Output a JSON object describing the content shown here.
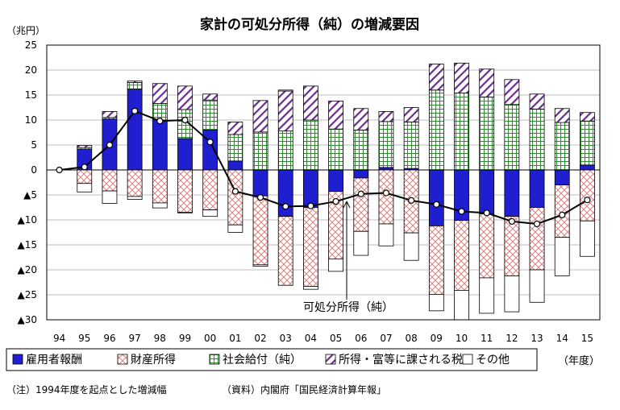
{
  "chart_data": {
    "type": "bar",
    "title": "家計の可処分所得（純）の増減要因",
    "y_unit": "（兆円）",
    "x_unit": "（年度）",
    "ylim": [
      -30,
      25
    ],
    "y_ticks": [
      {
        "value": 25,
        "label": "25"
      },
      {
        "value": 20,
        "label": "20"
      },
      {
        "value": 15,
        "label": "15"
      },
      {
        "value": 10,
        "label": "10"
      },
      {
        "value": 5,
        "label": "5"
      },
      {
        "value": 0,
        "label": "0"
      },
      {
        "value": -5,
        "label": "▲5"
      },
      {
        "value": -10,
        "label": "▲10"
      },
      {
        "value": -15,
        "label": "▲15"
      },
      {
        "value": -20,
        "label": "▲20"
      },
      {
        "value": -25,
        "label": "▲25"
      },
      {
        "value": -30,
        "label": "▲30"
      }
    ],
    "categories": [
      "94",
      "95",
      "96",
      "97",
      "98",
      "99",
      "00",
      "01",
      "02",
      "03",
      "04",
      "05",
      "06",
      "07",
      "08",
      "09",
      "10",
      "11",
      "12",
      "13",
      "14",
      "15"
    ],
    "stacked": true,
    "series": [
      {
        "name": "雇用者報酬",
        "pattern": "solid",
        "color": "#1f1fd0",
        "values": [
          0,
          4.2,
          10.2,
          16.2,
          10.0,
          6.3,
          8.0,
          1.8,
          -5.2,
          -9.3,
          -7.5,
          -4.3,
          -1.6,
          0.5,
          0.3,
          -11.2,
          -10.1,
          -8.8,
          -9.3,
          -7.5,
          -3.0,
          1.0
        ]
      },
      {
        "name": "財産所得",
        "pattern": "crosshatch",
        "color": "#e8a0a0",
        "values": [
          0,
          -2.7,
          -4.2,
          -5.3,
          -6.6,
          -8.5,
          -8.0,
          -11.0,
          -13.8,
          -13.8,
          -15.8,
          -13.5,
          -10.7,
          -10.8,
          -12.6,
          -13.7,
          -14.0,
          -12.8,
          -11.9,
          -12.5,
          -10.5,
          -10.2
        ]
      },
      {
        "name": "社会給付（純）",
        "pattern": "grid",
        "color": "#3a9a3a",
        "values": [
          0,
          0.3,
          0.3,
          1.3,
          3.3,
          5.8,
          6.0,
          5.3,
          7.6,
          7.8,
          10.0,
          8.2,
          8.0,
          9.2,
          9.3,
          16.0,
          15.4,
          14.6,
          13.1,
          12.2,
          9.5,
          8.8
        ]
      },
      {
        "name": "所得・富等に課される税",
        "pattern": "diagonal",
        "color": "#6a2d8e",
        "values": [
          0,
          0.4,
          1.2,
          0.3,
          4.0,
          4.7,
          1.2,
          2.5,
          6.3,
          8.0,
          6.8,
          5.6,
          4.3,
          2.0,
          2.9,
          5.2,
          6.0,
          5.6,
          5.0,
          3.0,
          2.8,
          1.7
        ]
      },
      {
        "name": "その他",
        "pattern": "none",
        "color": "#ffffff",
        "values": [
          0,
          -1.7,
          -2.5,
          -0.6,
          -1.0,
          -0.1,
          -1.3,
          -1.5,
          -0.3,
          0.2,
          -0.6,
          -2.5,
          -4.8,
          -4.4,
          -5.5,
          -3.3,
          -5.9,
          -7.1,
          -7.2,
          -6.5,
          -7.7,
          -7.1
        ]
      }
    ],
    "line": {
      "name": "可処分所得（純）",
      "values": [
        0,
        0.6,
        5.0,
        11.8,
        9.8,
        10.0,
        5.6,
        -4.3,
        -5.5,
        -7.3,
        -7.2,
        -6.3,
        -4.8,
        -4.6,
        -6.1,
        -6.9,
        -8.3,
        -8.6,
        -10.3,
        -10.8,
        -9.0,
        -6.0
      ]
    },
    "legend": {
      "placement": "bottom"
    },
    "grid": "horizontal"
  },
  "notes": {
    "note1": "（注）1994年度を起点とした増減幅",
    "note2": "（資料）内閣府「国民経済計算年報」"
  }
}
